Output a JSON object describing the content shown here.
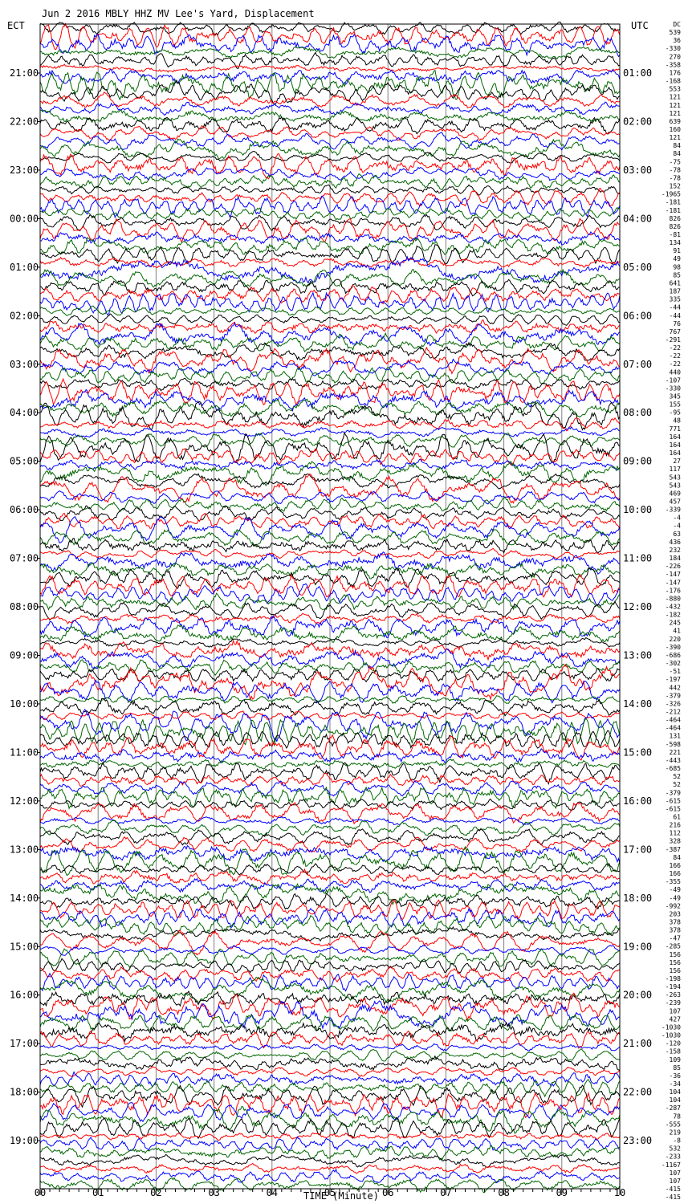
{
  "chart_data": {
    "type": "line",
    "title": "Jun  2 2016 MBLY HHZ MV Lee's Yard, Displacement",
    "left_axis_label": "ECT",
    "right_axis_label": "UTC",
    "xlabel": "TIME (Minute)",
    "x_ticks": [
      "00",
      "01",
      "02",
      "03",
      "04",
      "05",
      "06",
      "07",
      "08",
      "09",
      "10"
    ],
    "xlim": [
      0,
      10
    ],
    "left_hour_labels": [
      "21:00",
      "22:00",
      "23:00",
      "00:00",
      "01:00",
      "02:00",
      "03:00",
      "04:00",
      "05:00",
      "06:00",
      "07:00",
      "08:00",
      "09:00",
      "10:00",
      "11:00",
      "12:00",
      "13:00",
      "14:00",
      "15:00",
      "16:00",
      "17:00",
      "18:00",
      "19:00"
    ],
    "right_hour_labels": [
      "01:00",
      "02:00",
      "03:00",
      "04:00",
      "05:00",
      "06:00",
      "07:00",
      "08:00",
      "09:00",
      "10:00",
      "11:00",
      "12:00",
      "13:00",
      "14:00",
      "15:00",
      "16:00",
      "17:00",
      "18:00",
      "19:00",
      "20:00",
      "21:00",
      "22:00",
      "23:00"
    ],
    "trace_colors": [
      "#000000",
      "#ff0000",
      "#0000ff",
      "#006600"
    ],
    "grid": true,
    "trace_offsets": [
      "DC",
      "539",
      "36",
      "-330",
      "270",
      "-358",
      "176",
      "-168",
      "553",
      "121",
      "121",
      "121",
      "639",
      "160",
      "121",
      "84",
      "84",
      "-75",
      "-78",
      "-78",
      "152",
      "-1965",
      "-181",
      "-181",
      "826",
      "826",
      "-81",
      "134",
      "91",
      "49",
      "98",
      "85",
      "641",
      "187",
      "335",
      "-44",
      "-44",
      "76",
      "767",
      "-291",
      "-22",
      "-22",
      "-22",
      "440",
      "-107",
      "-330",
      "345",
      "155",
      "-95",
      "48",
      "771",
      "164",
      "164",
      "164",
      "27",
      "117",
      "543",
      "543",
      "469",
      "457",
      "-339",
      "-4",
      "-4",
      "63",
      "436",
      "232",
      "184",
      "-226",
      "-147",
      "-147",
      "-176",
      "-880",
      "-432",
      "-182",
      "245",
      "41",
      "220",
      "-390",
      "-686",
      "-302",
      "-51",
      "-197",
      "442",
      "-379",
      "-326",
      "-212",
      "-464",
      "-464",
      "131",
      "-598",
      "221",
      "-443",
      "-685",
      "52",
      "52",
      "-379",
      "-615",
      "-615",
      "61",
      "216",
      "112",
      "328",
      "-387",
      "84",
      "166",
      "166",
      "-355",
      "-49",
      "-49",
      "-992",
      "203",
      "378",
      "378",
      "-47",
      "-285",
      "156",
      "156",
      "156",
      "-198",
      "-194",
      "-263",
      "-239",
      "107",
      "427",
      "-1030",
      "-1030",
      "-120",
      "-158",
      "109",
      "85",
      "-36",
      "-34",
      "104",
      "104",
      "-287",
      "78",
      "-555",
      "219",
      "-8",
      "532",
      "-233",
      "-1167",
      "107",
      "107",
      "-415",
      "-415"
    ]
  }
}
